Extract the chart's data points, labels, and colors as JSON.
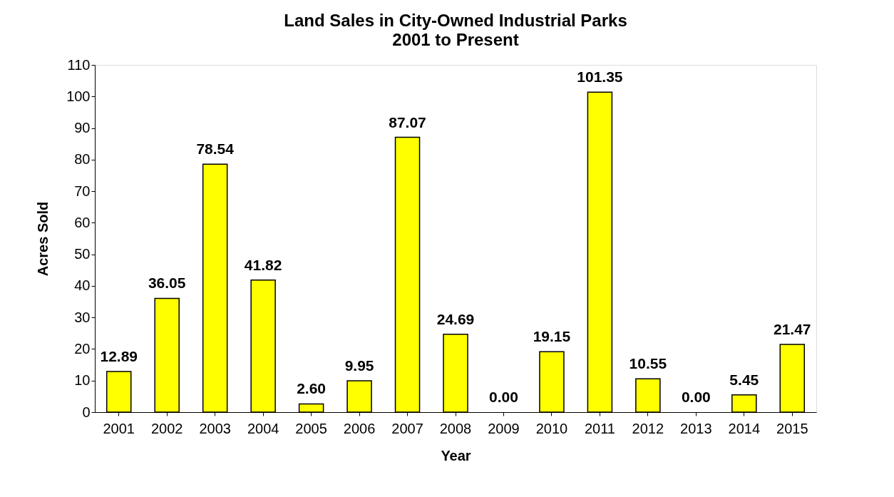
{
  "chart_data": {
    "type": "bar",
    "title": "Land Sales in City-Owned Industrial Parks",
    "subtitle": "2001 to Present",
    "xlabel": "Year",
    "ylabel": "Acres Sold",
    "categories": [
      "2001",
      "2002",
      "2003",
      "2004",
      "2005",
      "2006",
      "2007",
      "2008",
      "2009",
      "2010",
      "2011",
      "2012",
      "2013",
      "2014",
      "2015"
    ],
    "values": [
      12.89,
      36.05,
      78.54,
      41.82,
      2.6,
      9.95,
      87.07,
      24.69,
      0,
      19.15,
      101.35,
      10.55,
      0,
      5.45,
      21.47
    ],
    "value_labels": [
      "12.89",
      "36.05",
      "78.54",
      "41.82",
      "2.60",
      "9.95",
      "87.07",
      "24.69",
      "0.00",
      "19.15",
      "101.35",
      "10.55",
      "0.00",
      "5.45",
      "21.47"
    ],
    "color": "#ffff00",
    "ylim": [
      0,
      110
    ],
    "yticks": [
      0,
      10,
      20,
      30,
      40,
      50,
      60,
      70,
      80,
      90,
      100,
      110
    ],
    "grid": false
  }
}
